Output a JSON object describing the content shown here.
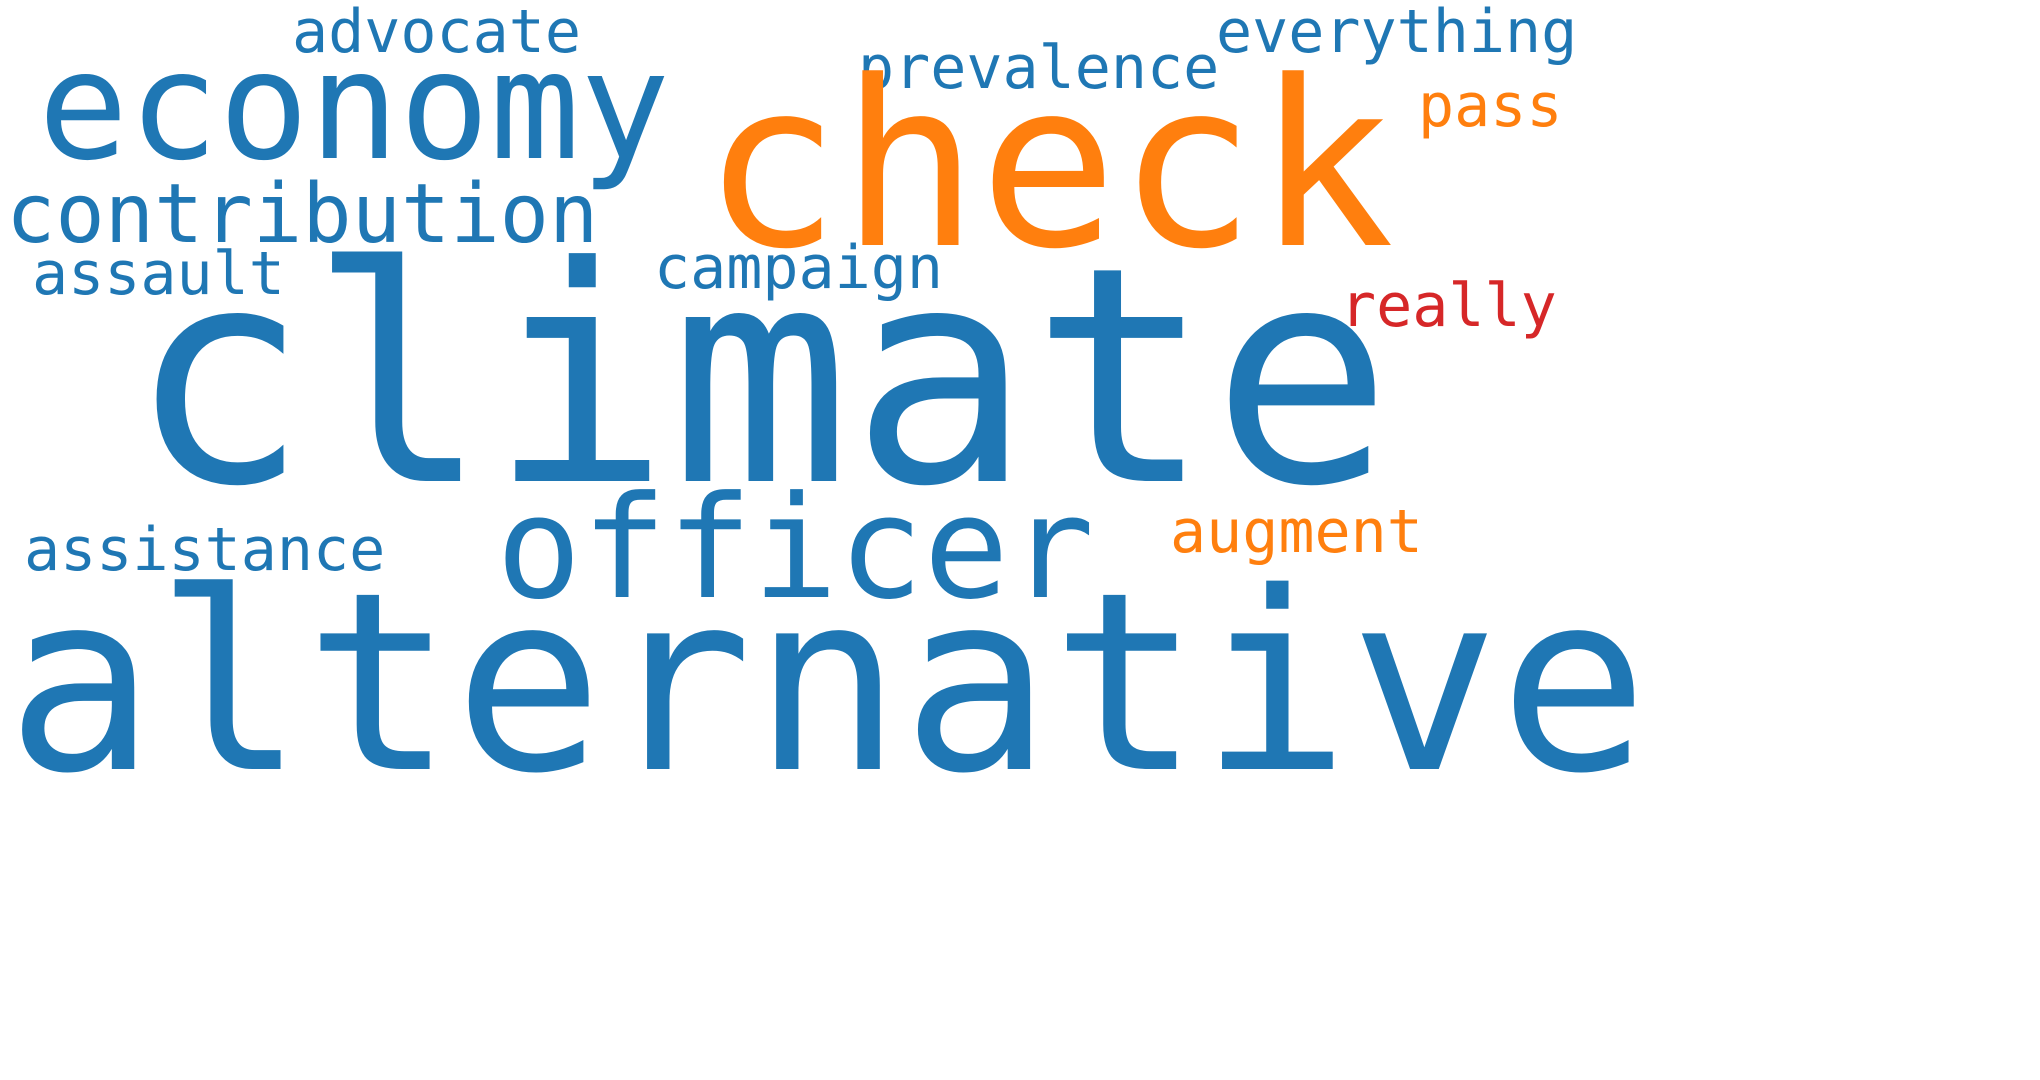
{
  "colors": {
    "background": "#ffffff",
    "blue": "#1f77b4",
    "orange": "#ff7f0e",
    "red": "#d62728"
  },
  "words": {
    "advocate": "advocate",
    "everything": "everything",
    "economy": "economy",
    "prevalence": "prevalence",
    "check": "check",
    "pass": "pass",
    "contribution": "contribution",
    "campaign": "campaign",
    "assault": "assault",
    "really": "really",
    "climate": "climate",
    "officer": "officer",
    "augment": "augment",
    "assistance": "assistance",
    "alternative": "alternative"
  },
  "word_colors": {
    "advocate": "blue",
    "everything": "blue",
    "economy": "blue",
    "prevalence": "blue",
    "check": "orange",
    "pass": "orange",
    "contribution": "blue",
    "campaign": "blue",
    "assault": "blue",
    "really": "red",
    "climate": "blue",
    "officer": "blue",
    "augment": "orange",
    "assistance": "blue",
    "alternative": "blue"
  }
}
